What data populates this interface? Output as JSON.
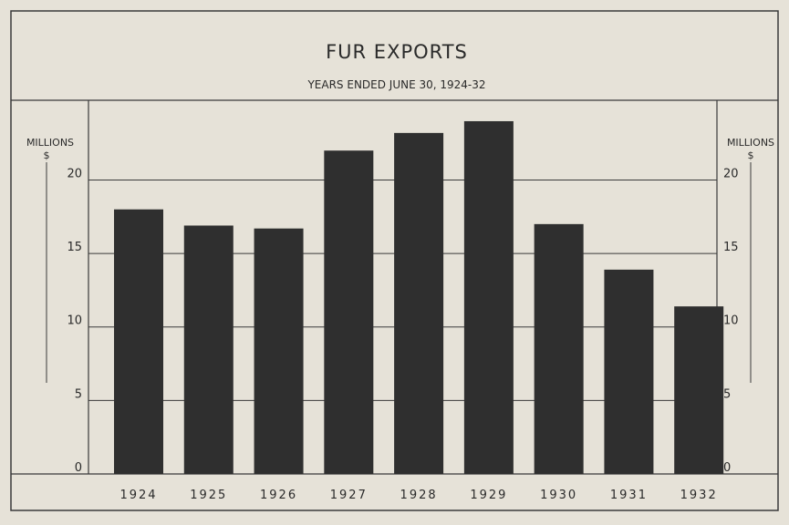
{
  "chart_data": {
    "type": "bar",
    "title": "FUR EXPORTS",
    "subtitle": "YEARS ENDED JUNE 30, 1924-32",
    "ylabel_left": "MILLIONS $",
    "ylabel_right": "MILLIONS $",
    "categories": [
      "1924",
      "1925",
      "1926",
      "1927",
      "1928",
      "1929",
      "1930",
      "1931",
      "1932"
    ],
    "values": [
      18.0,
      16.9,
      16.7,
      22.0,
      23.2,
      24.0,
      17.0,
      13.9,
      11.4
    ],
    "ylim": [
      0,
      25
    ],
    "yticks": [
      0,
      5,
      10,
      15,
      20
    ],
    "grid": true,
    "legend": "none",
    "colors": {
      "bar": "#2f2f2f",
      "background": "#e6e2d8",
      "line": "#3a3a3a"
    }
  }
}
